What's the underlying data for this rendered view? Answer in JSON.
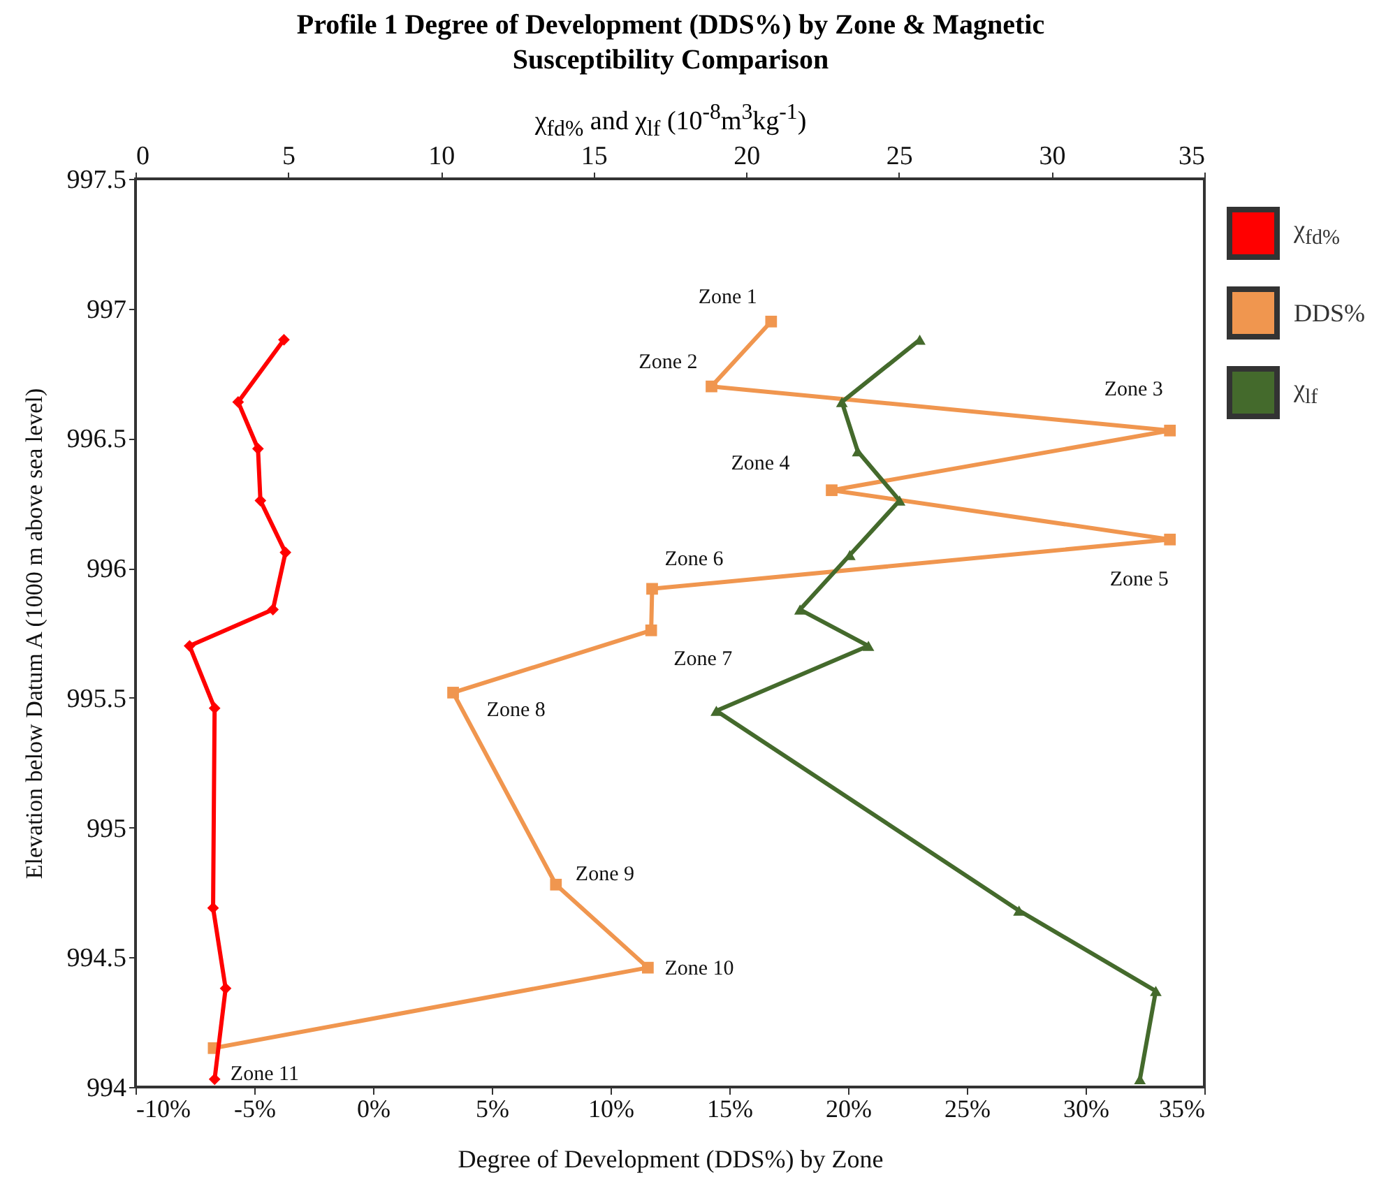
{
  "chart_data": {
    "type": "line",
    "title": "Profile 1 Degree of Development (DDS%) by Zone & Magnetic Susceptibility Comparison",
    "xlabel": "Degree of Development (DDS%) by Zone",
    "x2label": "χ$_{fd%}$ and  χ$_{lf}$  (10$^{-8}$m$^{3}$kg$^{-1}$)",
    "ylabel": "Elevation below Datum A (1000 m above sea level)",
    "series": [
      {
        "name": "χ$_{fd%}$",
        "color": "#ff0000",
        "marker": "diamond",
        "axis": "x2",
        "x": [
          4.86,
          3.36,
          4.01,
          4.09,
          4.91,
          4.5,
          1.77,
          2.59,
          2.54,
          2.95,
          2.59
        ],
        "values": [
          996.88,
          996.64,
          996.46,
          996.26,
          996.06,
          995.84,
          995.7,
          995.46,
          994.69,
          994.38,
          994.03
        ]
      },
      {
        "name": "DDS%",
        "color": "#f0964f",
        "marker": "square",
        "x": [
          16.76,
          14.25,
          33.55,
          19.31,
          33.55,
          11.75,
          11.71,
          3.37,
          7.7,
          11.57,
          -6.71
        ],
        "values": [
          996.95,
          996.7,
          996.53,
          996.3,
          996.11,
          995.92,
          995.76,
          995.52,
          994.78,
          994.46,
          994.15
        ]
      },
      {
        "name": "χ$_{lf}$",
        "color": "#446a2c",
        "marker": "triangle",
        "axis": "x2",
        "x": [
          25.68,
          23.13,
          23.65,
          25.02,
          23.39,
          21.76,
          24.0,
          19.02,
          28.93,
          33.41,
          32.89
        ],
        "values": [
          996.88,
          996.64,
          996.45,
          996.26,
          996.05,
          995.84,
          995.7,
          995.45,
          994.68,
          994.37,
          994.03
        ]
      }
    ],
    "xlim": [
      -10,
      35
    ],
    "xticks": [
      {
        "value": -10,
        "label": "-10%"
      },
      {
        "value": -5,
        "label": "-5%"
      },
      {
        "value": 0,
        "label": "0%"
      },
      {
        "value": 5,
        "label": "5%"
      },
      {
        "value": 10,
        "label": "10%"
      },
      {
        "value": 15,
        "label": "15%"
      },
      {
        "value": 20,
        "label": "20%"
      },
      {
        "value": 25,
        "label": "25%"
      },
      {
        "value": 30,
        "label": "30%"
      },
      {
        "value": 35,
        "label": "35%"
      }
    ],
    "x2lim": [
      0,
      35
    ],
    "x2ticks": [
      0,
      5,
      10,
      15,
      20,
      25,
      30,
      35
    ],
    "ylim": [
      994,
      997.5
    ],
    "yticks": [
      994,
      994.5,
      995,
      995.5,
      996,
      996.5,
      997,
      997.5
    ],
    "annotations": [
      {
        "text": "Zone 1",
        "x": 16.76,
        "y": 996.95
      },
      {
        "text": "Zone 2",
        "x": 14.25,
        "y": 996.7
      },
      {
        "text": "Zone 3",
        "x": 33.55,
        "y": 996.53
      },
      {
        "text": "Zone 4",
        "x": 19.31,
        "y": 996.3
      },
      {
        "text": "Zone 5",
        "x": 33.55,
        "y": 996.11
      },
      {
        "text": "Zone 6",
        "x": 11.75,
        "y": 995.92
      },
      {
        "text": "Zone 7",
        "x": 11.71,
        "y": 995.76
      },
      {
        "text": "Zone 8",
        "x": 3.37,
        "y": 995.52
      },
      {
        "text": "Zone 9",
        "x": 7.7,
        "y": 994.78
      },
      {
        "text": "Zone 10",
        "x": 11.57,
        "y": 994.46
      },
      {
        "text": "Zone 11",
        "x": -6.71,
        "y": 994.15
      }
    ],
    "grid": false,
    "legend": "right"
  }
}
